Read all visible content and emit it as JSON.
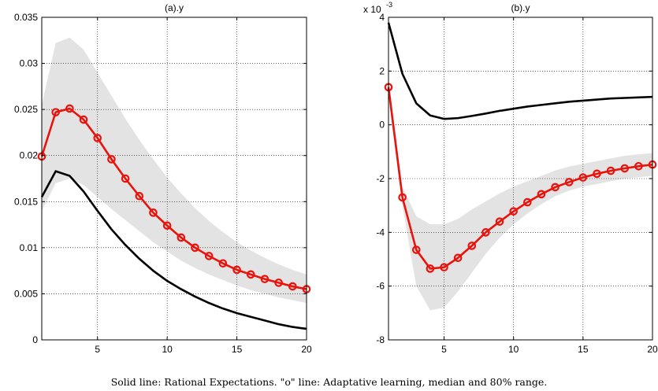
{
  "caption": "Solid line: Rational Expectations. \"o\" line: Adaptative learning, median and 80% range.",
  "colors": {
    "re_line": "#000000",
    "learning_line": "#e8130c",
    "band": "#e3e3e3"
  },
  "chart_data": [
    {
      "type": "line",
      "title": "(a).y",
      "exponent_label": "",
      "xlim": [
        1,
        20
      ],
      "ylim": [
        0,
        0.035
      ],
      "xticks": [
        5,
        10,
        15,
        20
      ],
      "yticks": [
        0,
        0.005,
        0.01,
        0.015,
        0.02,
        0.025,
        0.03,
        0.035
      ],
      "ytick_labels": [
        "0",
        "0.005",
        "0.01",
        "0.015",
        "0.02",
        "0.025",
        "0.03",
        "0.035"
      ],
      "grid": true,
      "x": [
        1,
        2,
        3,
        4,
        5,
        6,
        7,
        8,
        9,
        10,
        11,
        12,
        13,
        14,
        15,
        16,
        17,
        18,
        19,
        20
      ],
      "series": [
        {
          "style": "solid",
          "values": [
            0.0155,
            0.0183,
            0.0178,
            0.0161,
            0.014,
            0.012,
            0.0103,
            0.0088,
            0.0075,
            0.0064,
            0.0055,
            0.0047,
            0.004,
            0.0034,
            0.0029,
            0.0025,
            0.0021,
            0.0017,
            0.0014,
            0.0012
          ]
        },
        {
          "style": "circle-marker",
          "values": [
            0.0199,
            0.0247,
            0.0251,
            0.0239,
            0.0219,
            0.0196,
            0.0175,
            0.0156,
            0.0138,
            0.0124,
            0.0111,
            0.01,
            0.0091,
            0.0083,
            0.0076,
            0.0071,
            0.0066,
            0.0062,
            0.0058,
            0.0055
          ]
        }
      ],
      "band": {
        "lower": [
          0.014,
          0.017,
          0.0175,
          0.0168,
          0.0155,
          0.0142,
          0.013,
          0.0118,
          0.0106,
          0.0096,
          0.0086,
          0.0078,
          0.0071,
          0.0065,
          0.0059,
          0.0054,
          0.005,
          0.0046,
          0.0043,
          0.004
        ],
        "upper": [
          0.0255,
          0.0322,
          0.0328,
          0.0315,
          0.029,
          0.0265,
          0.024,
          0.0217,
          0.0196,
          0.0176,
          0.0159,
          0.0143,
          0.0129,
          0.0117,
          0.0106,
          0.0097,
          0.0089,
          0.0082,
          0.0076,
          0.0071
        ]
      }
    },
    {
      "type": "line",
      "title": "(b).y",
      "exponent_label": "x 10",
      "exponent_power": "-3",
      "xlim": [
        1,
        20
      ],
      "ylim": [
        -8,
        4
      ],
      "xticks": [
        5,
        10,
        15,
        20
      ],
      "yticks": [
        -8,
        -6,
        -4,
        -2,
        0,
        2,
        4
      ],
      "ytick_labels": [
        "-8",
        "-6",
        "-4",
        "-2",
        "0",
        "2",
        "4"
      ],
      "grid": true,
      "x": [
        1,
        2,
        3,
        4,
        5,
        6,
        7,
        8,
        9,
        10,
        11,
        12,
        13,
        14,
        15,
        16,
        17,
        18,
        19,
        20
      ],
      "series": [
        {
          "style": "solid",
          "values": [
            3.8,
            1.9,
            0.8,
            0.35,
            0.22,
            0.25,
            0.33,
            0.42,
            0.52,
            0.6,
            0.68,
            0.74,
            0.8,
            0.86,
            0.9,
            0.94,
            0.98,
            1.0,
            1.02,
            1.04
          ]
        },
        {
          "style": "circle-marker",
          "values": [
            1.4,
            -2.7,
            -4.65,
            -5.35,
            -5.3,
            -4.95,
            -4.5,
            -4.0,
            -3.6,
            -3.22,
            -2.88,
            -2.58,
            -2.32,
            -2.13,
            -1.96,
            -1.82,
            -1.71,
            -1.62,
            -1.54,
            -1.48
          ]
        }
      ],
      "band": {
        "lower": [
          1.0,
          -3.0,
          -6.0,
          -6.9,
          -6.8,
          -6.2,
          -5.5,
          -4.8,
          -4.2,
          -3.7,
          -3.3,
          -2.95,
          -2.65,
          -2.45,
          -2.3,
          -2.2,
          -2.1,
          -2.0,
          -1.95,
          -1.9
        ],
        "upper": [
          1.7,
          -2.3,
          -3.4,
          -3.7,
          -3.7,
          -3.5,
          -3.15,
          -2.85,
          -2.55,
          -2.3,
          -2.1,
          -1.9,
          -1.7,
          -1.55,
          -1.45,
          -1.35,
          -1.25,
          -1.15,
          -1.1,
          -1.05
        ]
      }
    }
  ]
}
